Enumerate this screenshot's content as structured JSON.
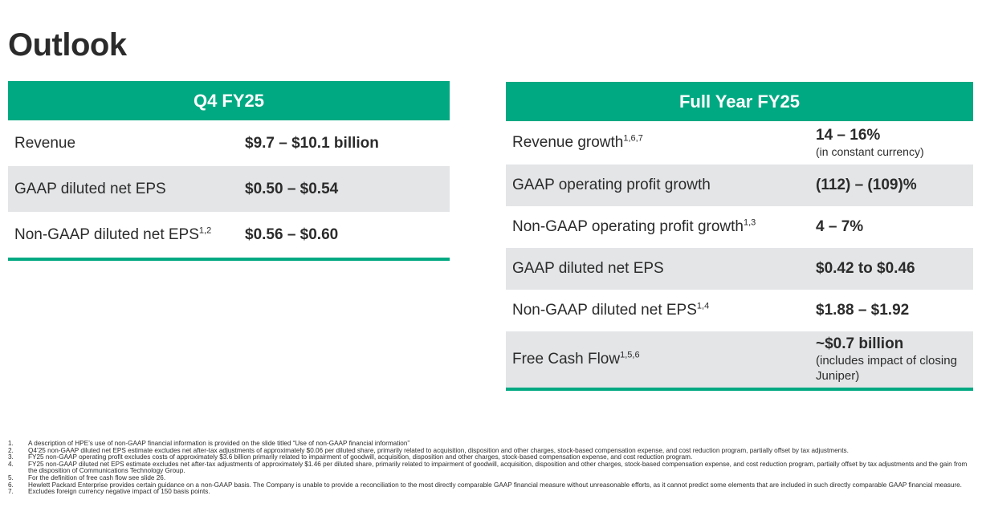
{
  "page": {
    "title": "Outlook"
  },
  "q4": {
    "header": "Q4 FY25",
    "rows": [
      {
        "label": "Revenue",
        "sup": "",
        "value": "$9.7 – $10.1 billion"
      },
      {
        "label": "GAAP diluted net EPS",
        "sup": "",
        "value": "$0.50 – $0.54"
      },
      {
        "label": "Non-GAAP diluted net EPS",
        "sup": "1,2",
        "value": "$0.56 – $0.60"
      }
    ]
  },
  "fy": {
    "header": "Full Year FY25",
    "rows": [
      {
        "label": "Revenue growth",
        "sup": "1,6,7",
        "value": "14 – 16%",
        "note": "(in constant currency)"
      },
      {
        "label": "GAAP operating profit growth",
        "sup": "",
        "value": "(112) – (109)%"
      },
      {
        "label": "Non-GAAP operating profit growth",
        "sup": "1,3",
        "value": "4 – 7%"
      },
      {
        "label": "GAAP diluted net EPS",
        "sup": "",
        "value": "$0.42 to $0.46"
      },
      {
        "label": "Non-GAAP diluted net EPS",
        "sup": "1,4",
        "value": "$1.88 – $1.92"
      },
      {
        "label": "Free Cash Flow",
        "sup": "1,5,6",
        "value": "~$0.7 billion",
        "note": "(includes impact of closing Juniper)"
      }
    ]
  },
  "footnotes": [
    {
      "num": "1.",
      "text": "A description of HPE’s use of non-GAAP financial information is provided on the slide titled “Use of non-GAAP financial information”"
    },
    {
      "num": "2.",
      "text": "Q4’25 non-GAAP diluted net EPS estimate excludes net after-tax adjustments of approximately $0.06 per diluted share, primarily related to acquisition, disposition and other charges, stock-based compensation expense, and cost reduction program, partially offset by tax adjustments."
    },
    {
      "num": "3.",
      "text": "FY25 non-GAAP operating profit excludes costs of approximately $3.6 billion primarily related to impairment of goodwill, acquisition, disposition and other charges, stock-based compensation expense, and cost reduction program."
    },
    {
      "num": "4.",
      "text": "FY25 non-GAAP diluted net EPS estimate excludes net after-tax adjustments of approximately $1.46 per diluted share, primarily related to impairment of goodwill, acquisition, disposition and other charges, stock-based compensation expense, and cost reduction program, partially offset by tax adjustments and the gain from the disposition of Communications Technology Group."
    },
    {
      "num": "5.",
      "text": "For the definition of free cash flow see slide 26."
    },
    {
      "num": "6.",
      "text": "Hewlett Packard Enterprise provides certain guidance on a non-GAAP basis. The Company is unable to provide a reconciliation to the most directly comparable GAAP financial measure without unreasonable efforts, as it cannot predict some elements that are included in such directly comparable GAAP financial measure."
    },
    {
      "num": "7.",
      "text": "Excludes foreign currency negative impact of 150 basis points."
    }
  ],
  "colors": {
    "accent": "#01a982",
    "row_shade": "#e3e5e7",
    "text": "#2b2b2b"
  }
}
